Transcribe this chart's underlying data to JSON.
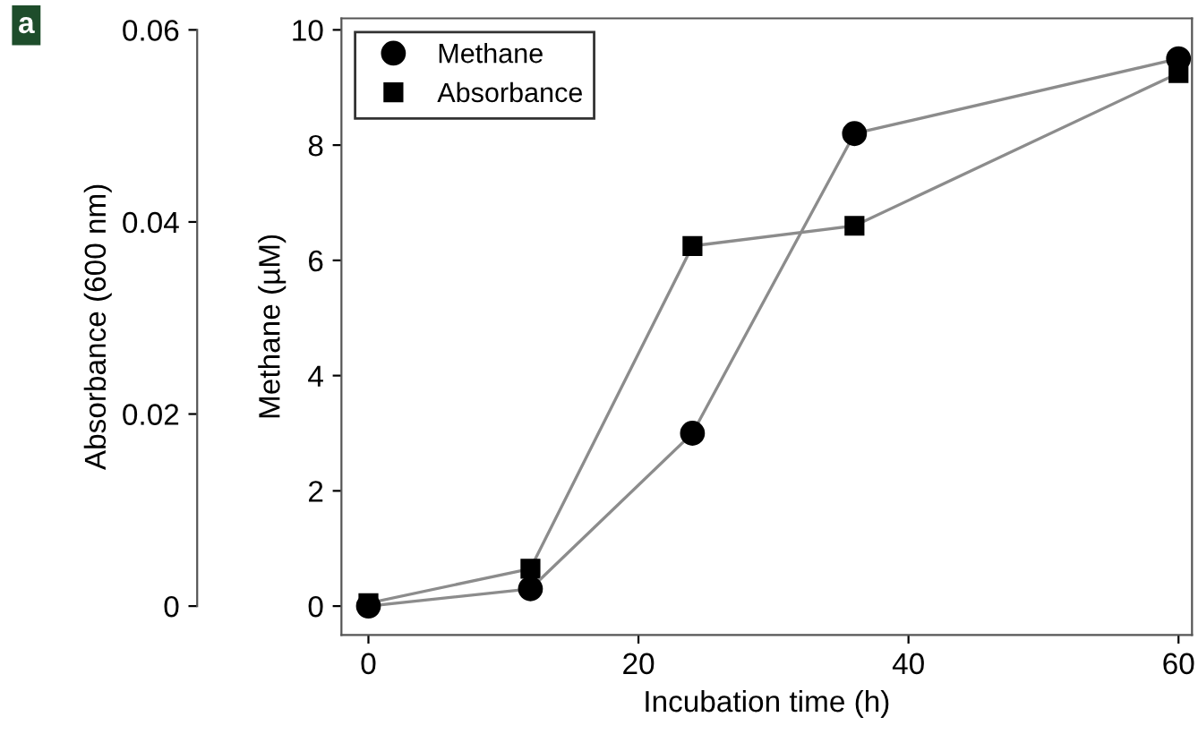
{
  "chart_data": {
    "type": "line",
    "xlabel": "Incubation time (h)",
    "ylabel": "Methane (µM)",
    "y2label": "Absorbance (600 nm)",
    "annotations": [
      "a"
    ],
    "series": [
      {
        "name": "Methane",
        "color": "#000000",
        "marker": "circle",
        "x": [
          0,
          12,
          24,
          36,
          60
        ],
        "values": [
          0,
          0.3,
          3.0,
          8.2,
          9.5
        ]
      },
      {
        "name": "Absorbance",
        "color": "#000000",
        "marker": "square",
        "axis": "y2",
        "x": [
          0,
          12,
          24,
          36,
          60
        ],
        "values": [
          0.0003,
          0.0039,
          0.0375,
          0.0396,
          0.0555
        ]
      }
    ],
    "xlim": [
      -2,
      61
    ],
    "xticks": [
      0,
      20,
      40,
      60
    ],
    "ylim": [
      -0.5,
      10.2
    ],
    "yticks": [
      0,
      2,
      4,
      6,
      8,
      10
    ],
    "y2lim": [
      -0.003,
      0.0612
    ],
    "y2ticks": [
      0,
      0.02,
      0.04,
      0.06
    ],
    "legend": "top left",
    "grid": false
  }
}
